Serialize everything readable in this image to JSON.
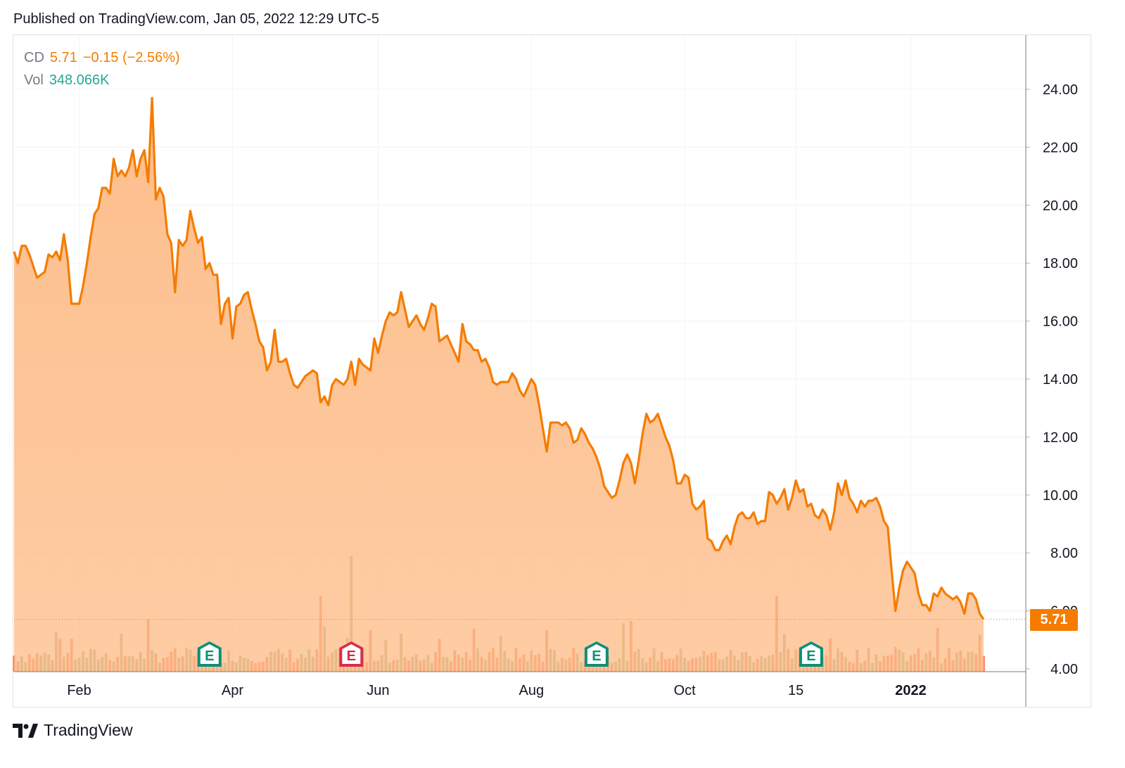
{
  "header": {
    "published": "Published on TradingView.com, Jan 05, 2022 12:29 UTC-5"
  },
  "legend": {
    "symbol": "CD",
    "price": "5.71",
    "change": "−0.15 (−2.56%)",
    "vol_label": "Vol",
    "vol_value": "348.066K"
  },
  "last_price_label": "5.71",
  "footer": {
    "brand": "TradingView"
  },
  "colors": {
    "line": "#f57c00",
    "area": "#fdbb86",
    "vol_up": "#a9b888",
    "vol_down": "#f4896b",
    "earnings_green": "#0d8f78",
    "earnings_red": "#d62d48"
  },
  "chart_data": {
    "type": "area",
    "title": "",
    "xlabel": "",
    "ylabel": "",
    "ylim": [
      4,
      25.6
    ],
    "grid": true,
    "y_ticks": [
      "24.00",
      "22.00",
      "20.00",
      "18.00",
      "16.00",
      "14.00",
      "12.00",
      "10.00",
      "8.00",
      "6.00",
      "4.00"
    ],
    "x_ticks": [
      {
        "label": "Feb",
        "idx": 17
      },
      {
        "label": "Apr",
        "idx": 57
      },
      {
        "label": "Jun",
        "idx": 95
      },
      {
        "label": "Aug",
        "idx": 135
      },
      {
        "label": "Oct",
        "idx": 175
      },
      {
        "label": "15",
        "idx": 204
      },
      {
        "label": "2022",
        "idx": 234
      }
    ],
    "series": [
      {
        "values": [
          18.4,
          18.0,
          18.6,
          18.6,
          18.3,
          17.9,
          17.5,
          17.6,
          17.7,
          18.3,
          18.2,
          18.4,
          18.1,
          19.0,
          18.1,
          16.6,
          16.6,
          16.6,
          17.2,
          18.0,
          18.9,
          19.7,
          19.9,
          20.6,
          20.6,
          20.4,
          21.6,
          21.0,
          21.2,
          21.0,
          21.3,
          21.9,
          21.0,
          21.6,
          21.9,
          20.8,
          23.7,
          20.2,
          20.6,
          20.3,
          19.0,
          18.7,
          17.0,
          18.8,
          18.6,
          18.8,
          19.8,
          19.2,
          18.7,
          18.9,
          17.8,
          18.0,
          17.6,
          17.6,
          15.9,
          16.6,
          16.8,
          15.4,
          16.5,
          16.6,
          16.9,
          17.0,
          16.4,
          15.9,
          15.3,
          15.1,
          14.3,
          14.6,
          15.7,
          14.6,
          14.6,
          14.7,
          14.2,
          13.8,
          13.7,
          13.9,
          14.1,
          14.2,
          14.3,
          14.2,
          13.2,
          13.4,
          13.1,
          13.8,
          14.0,
          13.9,
          13.8,
          14.0,
          14.6,
          13.8,
          14.7,
          14.5,
          14.4,
          14.3,
          15.4,
          14.9,
          15.5,
          16.0,
          16.3,
          16.2,
          16.3,
          17.0,
          16.4,
          15.8,
          16.0,
          16.2,
          15.9,
          15.7,
          16.1,
          16.6,
          16.5,
          15.3,
          15.4,
          15.5,
          15.2,
          14.9,
          14.6,
          15.9,
          15.3,
          15.2,
          15.0,
          15.0,
          14.6,
          14.7,
          14.4,
          13.9,
          13.8,
          13.9,
          13.9,
          13.9,
          14.2,
          14.0,
          13.6,
          13.4,
          13.7,
          14.0,
          13.8,
          13.1,
          12.3,
          11.5,
          12.5,
          12.5,
          12.5,
          12.4,
          12.5,
          12.3,
          11.8,
          11.9,
          12.3,
          12.1,
          11.8,
          11.6,
          11.3,
          10.9,
          10.3,
          10.1,
          9.9,
          10.0,
          10.5,
          11.1,
          11.4,
          11.1,
          10.4,
          11.2,
          12.1,
          12.8,
          12.5,
          12.6,
          12.8,
          12.4,
          12.0,
          11.7,
          11.2,
          10.4,
          10.4,
          10.7,
          10.6,
          9.7,
          9.5,
          9.6,
          9.8,
          8.5,
          8.4,
          8.1,
          8.1,
          8.4,
          8.6,
          8.3,
          8.9,
          9.3,
          9.4,
          9.2,
          9.2,
          9.4,
          9.0,
          9.1,
          9.1,
          10.1,
          10.0,
          9.7,
          9.9,
          10.2,
          9.5,
          9.9,
          10.5,
          10.1,
          10.2,
          9.6,
          9.7,
          9.3,
          9.2,
          9.5,
          9.3,
          8.8,
          9.4,
          10.4,
          10.0,
          10.5,
          9.9,
          9.7,
          9.4,
          9.8,
          9.6,
          9.8,
          9.8,
          9.9,
          9.6,
          9.1,
          8.9,
          7.4,
          6.0,
          6.8,
          7.4,
          7.7,
          7.5,
          7.3,
          6.6,
          6.2,
          6.2,
          6.0,
          6.6,
          6.5,
          6.8,
          6.6,
          6.5,
          6.4,
          6.5,
          6.3,
          5.9,
          6.6,
          6.6,
          6.4,
          5.9,
          5.71
        ]
      }
    ],
    "earnings_markers": [
      {
        "label": "E",
        "idx": 51,
        "color": "green"
      },
      {
        "label": "E",
        "idx": 88,
        "color": "red"
      },
      {
        "label": "E",
        "idx": 152,
        "color": "green"
      },
      {
        "label": "E",
        "idx": 208,
        "color": "green"
      }
    ],
    "last_value": 5.71
  }
}
